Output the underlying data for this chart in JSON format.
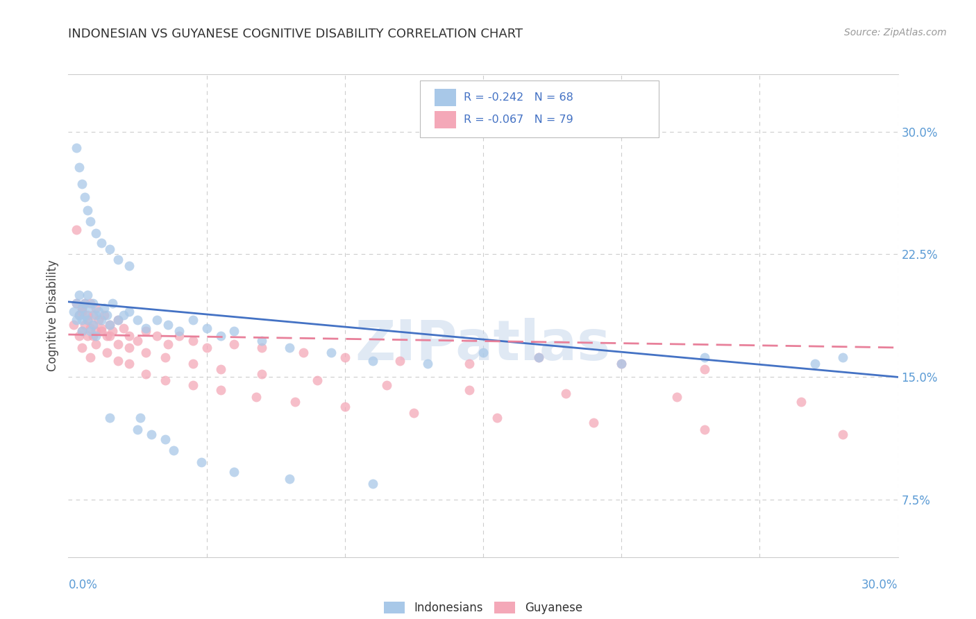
{
  "title": "INDONESIAN VS GUYANESE COGNITIVE DISABILITY CORRELATION CHART",
  "source": "Source: ZipAtlas.com",
  "ylabel": "Cognitive Disability",
  "legend_label_indonesians": "Indonesians",
  "legend_label_guyanese": "Guyanese",
  "blue_color": "#a8c8e8",
  "pink_color": "#f4a8b8",
  "blue_line_color": "#4472c4",
  "pink_line_color": "#e8809a",
  "watermark": "ZIPatlas",
  "xlim": [
    0.0,
    0.3
  ],
  "ylim": [
    0.04,
    0.335
  ],
  "blue_line_start": 0.196,
  "blue_line_end": 0.15,
  "pink_line_start": 0.176,
  "pink_line_end": 0.168,
  "indonesian_x": [
    0.002,
    0.003,
    0.003,
    0.004,
    0.004,
    0.005,
    0.005,
    0.005,
    0.006,
    0.006,
    0.007,
    0.007,
    0.008,
    0.008,
    0.009,
    0.009,
    0.01,
    0.01,
    0.011,
    0.012,
    0.013,
    0.014,
    0.015,
    0.016,
    0.018,
    0.02,
    0.022,
    0.025,
    0.028,
    0.032,
    0.036,
    0.04,
    0.045,
    0.05,
    0.055,
    0.06,
    0.07,
    0.08,
    0.095,
    0.11,
    0.13,
    0.15,
    0.17,
    0.2,
    0.23,
    0.27,
    0.28,
    0.003,
    0.004,
    0.005,
    0.006,
    0.007,
    0.008,
    0.01,
    0.012,
    0.015,
    0.018,
    0.022,
    0.026,
    0.03,
    0.038,
    0.048,
    0.06,
    0.08,
    0.11,
    0.015,
    0.025,
    0.035
  ],
  "indonesian_y": [
    0.19,
    0.195,
    0.185,
    0.2,
    0.188,
    0.192,
    0.185,
    0.178,
    0.195,
    0.188,
    0.2,
    0.185,
    0.192,
    0.178,
    0.195,
    0.182,
    0.188,
    0.175,
    0.19,
    0.185,
    0.192,
    0.188,
    0.182,
    0.195,
    0.185,
    0.188,
    0.19,
    0.185,
    0.18,
    0.185,
    0.182,
    0.178,
    0.185,
    0.18,
    0.175,
    0.178,
    0.172,
    0.168,
    0.165,
    0.16,
    0.158,
    0.165,
    0.162,
    0.158,
    0.162,
    0.158,
    0.162,
    0.29,
    0.278,
    0.268,
    0.26,
    0.252,
    0.245,
    0.238,
    0.232,
    0.228,
    0.222,
    0.218,
    0.125,
    0.115,
    0.105,
    0.098,
    0.092,
    0.088,
    0.085,
    0.125,
    0.118,
    0.112
  ],
  "guyanese_x": [
    0.002,
    0.003,
    0.004,
    0.004,
    0.005,
    0.005,
    0.006,
    0.006,
    0.007,
    0.007,
    0.008,
    0.008,
    0.009,
    0.009,
    0.01,
    0.01,
    0.011,
    0.012,
    0.013,
    0.014,
    0.015,
    0.016,
    0.018,
    0.02,
    0.022,
    0.025,
    0.028,
    0.032,
    0.036,
    0.04,
    0.045,
    0.05,
    0.06,
    0.07,
    0.085,
    0.1,
    0.12,
    0.145,
    0.17,
    0.2,
    0.23,
    0.003,
    0.005,
    0.007,
    0.009,
    0.012,
    0.015,
    0.018,
    0.022,
    0.028,
    0.035,
    0.045,
    0.055,
    0.07,
    0.09,
    0.115,
    0.145,
    0.18,
    0.22,
    0.265,
    0.005,
    0.008,
    0.01,
    0.014,
    0.018,
    0.022,
    0.028,
    0.035,
    0.045,
    0.055,
    0.068,
    0.082,
    0.1,
    0.125,
    0.155,
    0.19,
    0.23,
    0.28
  ],
  "guyanese_y": [
    0.182,
    0.24,
    0.188,
    0.175,
    0.192,
    0.178,
    0.195,
    0.182,
    0.188,
    0.175,
    0.195,
    0.18,
    0.188,
    0.175,
    0.192,
    0.178,
    0.185,
    0.18,
    0.188,
    0.175,
    0.182,
    0.178,
    0.185,
    0.18,
    0.175,
    0.172,
    0.178,
    0.175,
    0.17,
    0.175,
    0.172,
    0.168,
    0.17,
    0.168,
    0.165,
    0.162,
    0.16,
    0.158,
    0.162,
    0.158,
    0.155,
    0.195,
    0.19,
    0.185,
    0.182,
    0.178,
    0.175,
    0.17,
    0.168,
    0.165,
    0.162,
    0.158,
    0.155,
    0.152,
    0.148,
    0.145,
    0.142,
    0.14,
    0.138,
    0.135,
    0.168,
    0.162,
    0.17,
    0.165,
    0.16,
    0.158,
    0.152,
    0.148,
    0.145,
    0.142,
    0.138,
    0.135,
    0.132,
    0.128,
    0.125,
    0.122,
    0.118,
    0.115
  ]
}
